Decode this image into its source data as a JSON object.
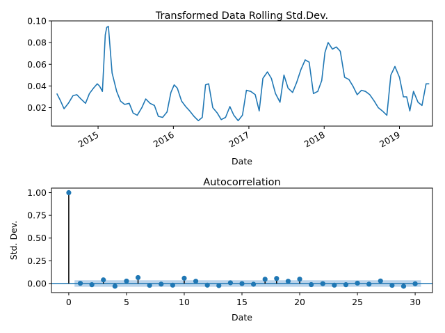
{
  "chart_data": [
    {
      "type": "line",
      "title": "Transformed Data Rolling Std.Dev.",
      "xlabel": "Date",
      "ylabel": "",
      "xlim": [
        "2014-05-20",
        "2019-06-10"
      ],
      "ylim": [
        0.003,
        0.1
      ],
      "yticks": [
        0.02,
        0.04,
        0.06,
        0.08,
        0.1
      ],
      "ytick_labels": [
        "0.02",
        "0.04",
        "0.06",
        "0.08",
        "0.10"
      ],
      "xticks": [
        "2015-01-01",
        "2016-01-01",
        "2017-01-01",
        "2018-01-01",
        "2019-01-01"
      ],
      "xtick_labels": [
        "2015",
        "2016",
        "2017",
        "2018",
        "2019"
      ],
      "color": "#1f77b4",
      "grid": false,
      "series": [
        {
          "x": [
            "2014-06-15",
            "2014-07-01",
            "2014-07-20",
            "2014-08-10",
            "2014-09-01",
            "2014-09-20",
            "2014-10-10",
            "2014-11-01",
            "2014-11-20",
            "2014-12-10",
            "2014-12-28",
            "2015-01-08",
            "2015-01-22",
            "2015-02-05",
            "2015-02-12",
            "2015-02-20",
            "2015-03-10",
            "2015-04-01",
            "2015-04-20",
            "2015-05-10",
            "2015-06-01",
            "2015-06-20",
            "2015-07-10",
            "2015-08-01",
            "2015-08-20",
            "2015-09-10",
            "2015-10-01",
            "2015-10-20",
            "2015-11-10",
            "2015-12-01",
            "2015-12-20",
            "2016-01-05",
            "2016-01-20",
            "2016-02-10",
            "2016-03-01",
            "2016-03-20",
            "2016-04-10",
            "2016-05-01",
            "2016-05-20",
            "2016-06-05",
            "2016-06-20",
            "2016-07-10",
            "2016-08-01",
            "2016-08-20",
            "2016-09-10",
            "2016-10-01",
            "2016-10-20",
            "2016-11-10",
            "2016-12-01",
            "2016-12-20",
            "2017-01-10",
            "2017-02-01",
            "2017-02-20",
            "2017-03-10",
            "2017-04-01",
            "2017-04-20",
            "2017-05-10",
            "2017-06-01",
            "2017-06-20",
            "2017-07-10",
            "2017-08-01",
            "2017-08-20",
            "2017-09-10",
            "2017-10-01",
            "2017-10-20",
            "2017-11-10",
            "2017-12-01",
            "2017-12-20",
            "2018-01-05",
            "2018-01-20",
            "2018-02-10",
            "2018-03-01",
            "2018-03-20",
            "2018-04-10",
            "2018-05-01",
            "2018-05-20",
            "2018-06-10",
            "2018-07-01",
            "2018-07-20",
            "2018-08-10",
            "2018-09-01",
            "2018-09-20",
            "2018-10-10",
            "2018-11-01",
            "2018-11-20",
            "2018-12-10",
            "2019-01-01",
            "2019-01-20",
            "2019-02-05",
            "2019-02-20",
            "2019-03-10",
            "2019-04-01",
            "2019-04-20",
            "2019-05-10",
            "2019-05-25"
          ],
          "y": [
            0.033,
            0.027,
            0.019,
            0.024,
            0.031,
            0.032,
            0.028,
            0.024,
            0.033,
            0.038,
            0.042,
            0.04,
            0.035,
            0.087,
            0.094,
            0.095,
            0.052,
            0.035,
            0.026,
            0.023,
            0.024,
            0.015,
            0.013,
            0.02,
            0.028,
            0.024,
            0.022,
            0.012,
            0.011,
            0.016,
            0.034,
            0.041,
            0.038,
            0.026,
            0.021,
            0.017,
            0.012,
            0.008,
            0.011,
            0.041,
            0.042,
            0.02,
            0.015,
            0.009,
            0.011,
            0.021,
            0.013,
            0.008,
            0.013,
            0.036,
            0.035,
            0.032,
            0.017,
            0.047,
            0.053,
            0.047,
            0.033,
            0.025,
            0.05,
            0.038,
            0.034,
            0.043,
            0.055,
            0.064,
            0.062,
            0.033,
            0.035,
            0.045,
            0.071,
            0.08,
            0.074,
            0.076,
            0.072,
            0.048,
            0.046,
            0.04,
            0.032,
            0.036,
            0.035,
            0.032,
            0.026,
            0.02,
            0.017,
            0.013,
            0.05,
            0.058,
            0.048,
            0.03,
            0.03,
            0.017,
            0.035,
            0.025,
            0.022,
            0.042,
            0.042
          ]
        }
      ]
    },
    {
      "type": "stem",
      "title": "Autocorrelation",
      "xlabel": "Date",
      "ylabel": "Std. Dev.",
      "xlim": [
        -1.5,
        31.5
      ],
      "ylim": [
        -0.1,
        1.05
      ],
      "xticks": [
        0,
        5,
        10,
        15,
        20,
        25,
        30
      ],
      "xtick_labels": [
        "0",
        "5",
        "10",
        "15",
        "20",
        "25",
        "30"
      ],
      "yticks": [
        0.0,
        0.25,
        0.5,
        0.75,
        1.0
      ],
      "ytick_labels": [
        "0.00",
        "0.25",
        "0.50",
        "0.75",
        "1.00"
      ],
      "confidence_band": 0.036,
      "color": "#1f77b4",
      "band_color": "#aecde8",
      "grid": false,
      "lags": [
        0,
        1,
        2,
        3,
        4,
        5,
        6,
        7,
        8,
        9,
        10,
        11,
        12,
        13,
        14,
        15,
        16,
        17,
        18,
        19,
        20,
        21,
        22,
        23,
        24,
        25,
        26,
        27,
        28,
        29,
        30
      ],
      "values": [
        1.0,
        0.002,
        -0.013,
        0.04,
        -0.03,
        0.027,
        0.065,
        -0.02,
        -0.007,
        -0.018,
        0.058,
        0.025,
        -0.018,
        -0.023,
        0.008,
        -0.001,
        -0.008,
        0.047,
        0.055,
        0.025,
        0.048,
        -0.012,
        -0.002,
        -0.018,
        -0.013,
        0.004,
        -0.007,
        0.028,
        -0.02,
        -0.03,
        -0.003
      ]
    }
  ]
}
